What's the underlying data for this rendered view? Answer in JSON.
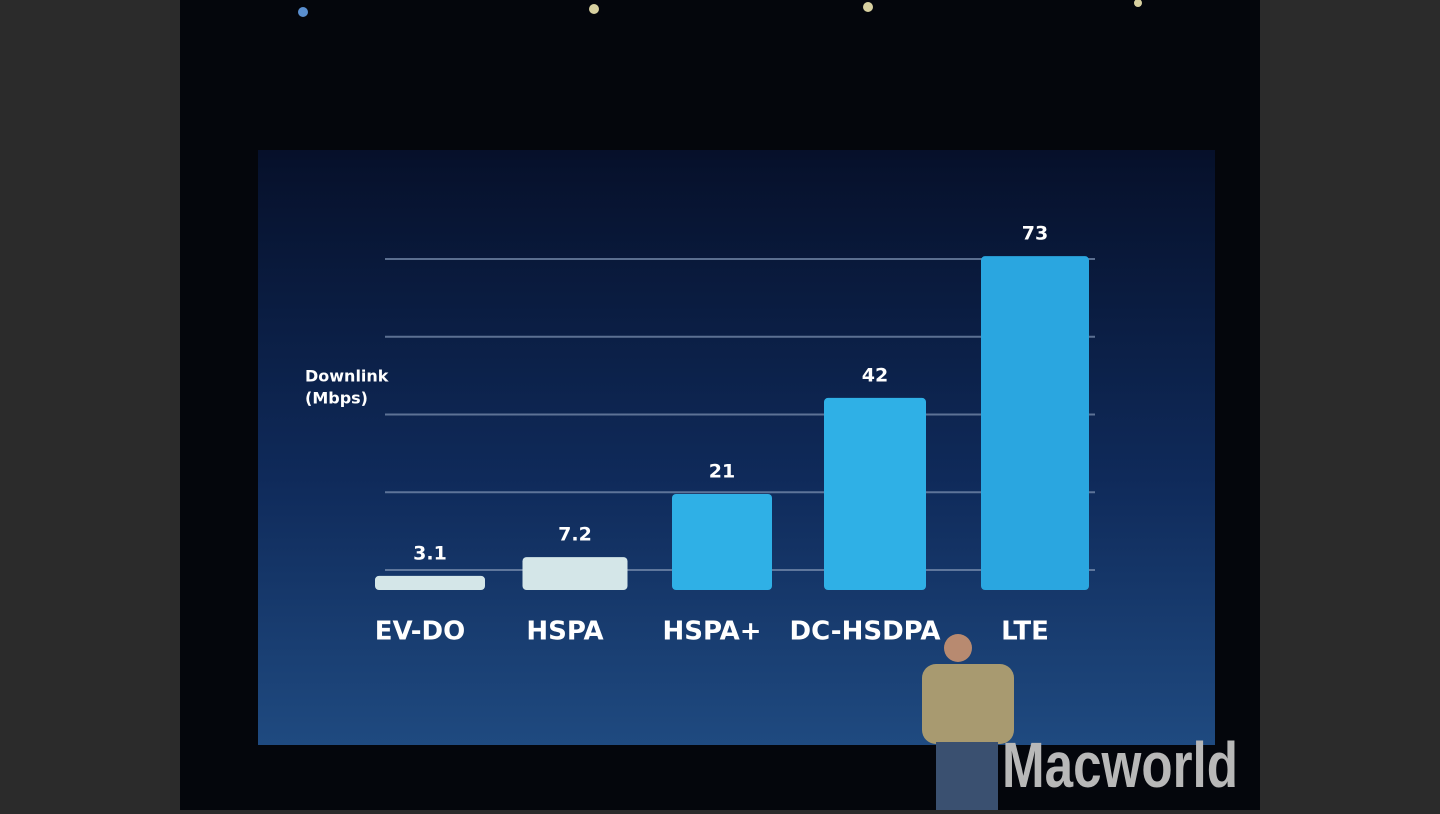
{
  "chart_data": {
    "type": "bar",
    "y_label_line1": "Downlink",
    "y_label_line2": "(Mbps)",
    "categories": [
      "EV-DO",
      "HSPA",
      "HSPA+",
      "DC-HSDPA",
      "LTE"
    ],
    "values": [
      3.1,
      7.2,
      21,
      42,
      73
    ],
    "colors": [
      "#d4e6e8",
      "#d4e6e8",
      "#2fb0e6",
      "#2fb0e6",
      "#2aa6e0"
    ],
    "ylim": [
      0,
      75
    ],
    "yticks": [
      0,
      17,
      34,
      51,
      68
    ],
    "grid": true
  },
  "watermark": "Macworld"
}
